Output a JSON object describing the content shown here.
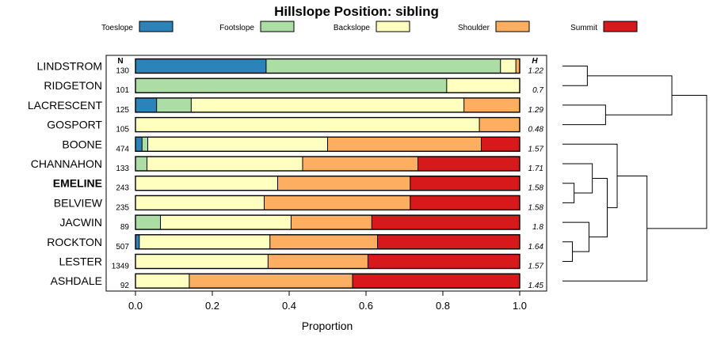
{
  "chart_data": {
    "type": "bar",
    "stacked": true,
    "orientation": "horizontal",
    "title": "Hillslope Position: sibling",
    "xlabel": "Proportion",
    "ylabel": "",
    "xlim": [
      0,
      1
    ],
    "xticks": [
      "0.0",
      "0.2",
      "0.4",
      "0.6",
      "0.8",
      "1.0"
    ],
    "n_header": "N",
    "h_header": "H",
    "highlight_category": "EMELINE",
    "legend_position": "top",
    "series": [
      {
        "name": "Toeslope",
        "color": "#2B83BA"
      },
      {
        "name": "Footslope",
        "color": "#ABDDA4"
      },
      {
        "name": "Backslope",
        "color": "#FFFFBF"
      },
      {
        "name": "Shoulder",
        "color": "#FDAE61"
      },
      {
        "name": "Summit",
        "color": "#D7191C"
      }
    ],
    "categories": [
      {
        "name": "LINDSTROM",
        "n": "130",
        "h": "1.22",
        "values": [
          0.34,
          0.61,
          0.04,
          0.01,
          0.0
        ]
      },
      {
        "name": "RIDGETON",
        "n": "101",
        "h": "0.7",
        "values": [
          0.0,
          0.81,
          0.19,
          0.0,
          0.0
        ]
      },
      {
        "name": "LACRESCENT",
        "n": "125",
        "h": "1.29",
        "values": [
          0.055,
          0.09,
          0.71,
          0.145,
          0.0
        ]
      },
      {
        "name": "GOSPORT",
        "n": "105",
        "h": "0.48",
        "values": [
          0.0,
          0.0,
          0.895,
          0.105,
          0.0
        ]
      },
      {
        "name": "BOONE",
        "n": "474",
        "h": "1.57",
        "values": [
          0.017,
          0.015,
          0.468,
          0.4,
          0.1
        ]
      },
      {
        "name": "CHANNAHON",
        "n": "133",
        "h": "1.71",
        "values": [
          0.0,
          0.03,
          0.405,
          0.3,
          0.265
        ]
      },
      {
        "name": "EMELINE",
        "n": "243",
        "h": "1.58",
        "values": [
          0.0,
          0.0,
          0.37,
          0.345,
          0.285
        ]
      },
      {
        "name": "BELVIEW",
        "n": "235",
        "h": "1.58",
        "values": [
          0.0,
          0.0,
          0.335,
          0.38,
          0.285
        ]
      },
      {
        "name": "JACWIN",
        "n": "89",
        "h": "1.8",
        "values": [
          0.0,
          0.065,
          0.34,
          0.21,
          0.385
        ]
      },
      {
        "name": "ROCKTON",
        "n": "507",
        "h": "1.64",
        "values": [
          0.01,
          0.0,
          0.34,
          0.28,
          0.37
        ]
      },
      {
        "name": "LESTER",
        "n": "1349",
        "h": "1.57",
        "values": [
          0.0,
          0.0,
          0.345,
          0.26,
          0.395
        ]
      },
      {
        "name": "ASHDALE",
        "n": "92",
        "h": "1.45",
        "values": [
          0.0,
          0.0,
          0.14,
          0.425,
          0.435
        ]
      }
    ],
    "dendrogram": {
      "merges": [
        [
          -1,
          -2,
          0.15
        ],
        [
          -3,
          -4,
          0.26
        ],
        [
          1,
          2,
          0.66
        ],
        [
          -7,
          -8,
          0.07
        ],
        [
          -10,
          -11,
          0.06
        ],
        [
          -9,
          5,
          0.16
        ],
        [
          -6,
          4,
          0.18
        ],
        [
          7,
          6,
          0.27
        ],
        [
          -5,
          8,
          0.33
        ],
        [
          9,
          -12,
          0.51
        ],
        [
          3,
          10,
          0.87
        ]
      ]
    }
  }
}
